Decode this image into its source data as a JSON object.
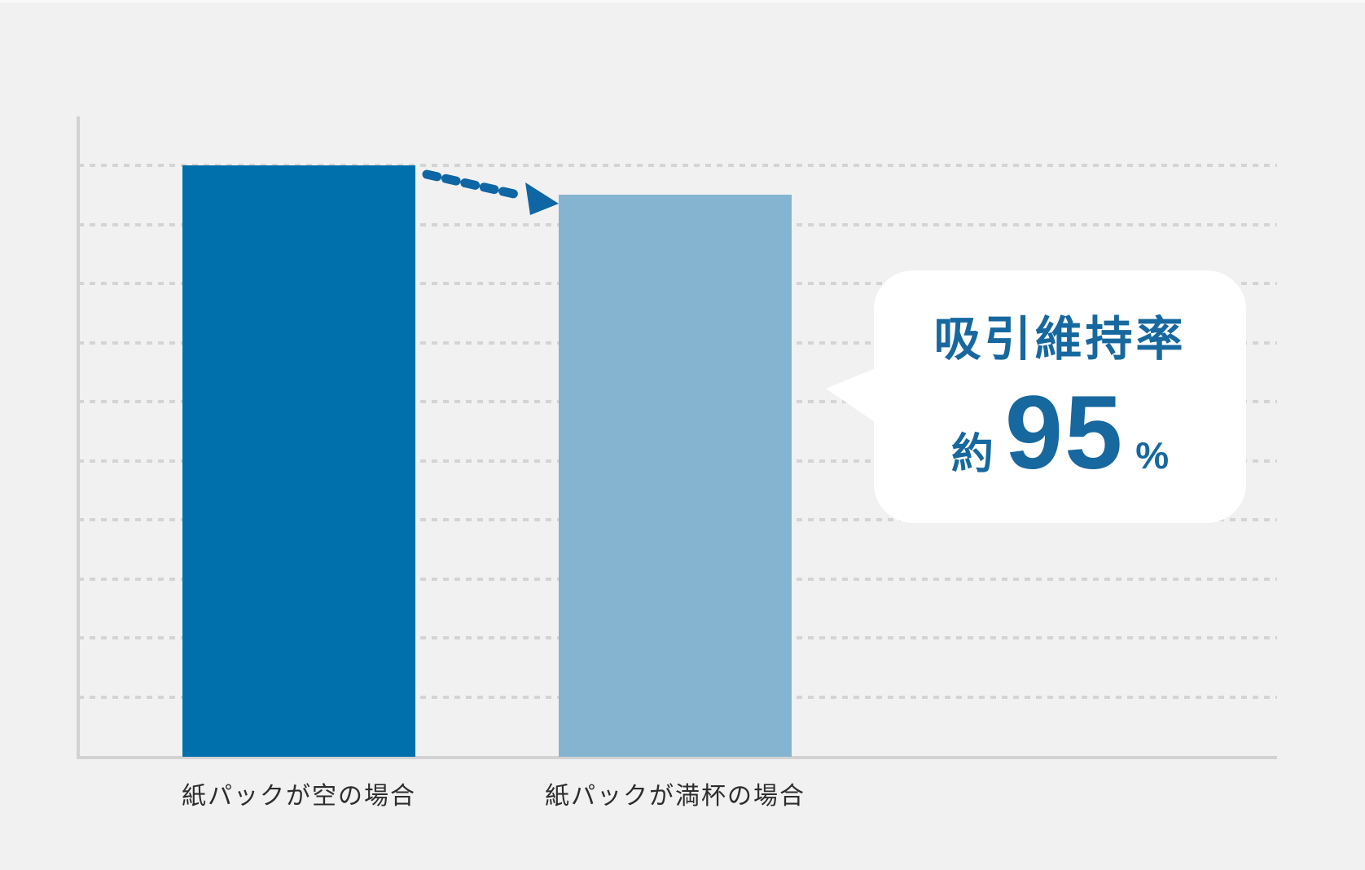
{
  "chart_data": {
    "type": "bar",
    "title": "",
    "categories": [
      "紙パックが空の場合",
      "紙パックが満杯の場合"
    ],
    "values": [
      100,
      95
    ],
    "unit": "%",
    "ylabel": "",
    "xlabel": "",
    "ylim": [
      0,
      100
    ],
    "grid": "horizontal dotted lines at 10% intervals, no tick labels",
    "legend": "none",
    "annotation": {
      "title": "吸引維持率",
      "approx": "約",
      "value": "95",
      "percent": "%",
      "points_at": "紙パックが満杯の場合 bar"
    },
    "arrow": "dashed arrow from top of first bar to top of second bar"
  },
  "labels": {
    "bar1": "紙パックが空の場合",
    "bar2": "紙パックが満杯の場合"
  },
  "callout": {
    "title": "吸引維持率",
    "approx": "約",
    "value": "95",
    "percent": "%"
  },
  "colors": {
    "background": "#f1f1f1",
    "axis": "#d2d2d2",
    "gridline": "#d4d4d4",
    "bar_empty": "#0070ac",
    "bar_full": "#84b4d0",
    "arrow_blue": "#0e66a4",
    "callout_text": "#17689f",
    "label_text": "#2d2d2d",
    "callout_background": "#ffffff"
  }
}
